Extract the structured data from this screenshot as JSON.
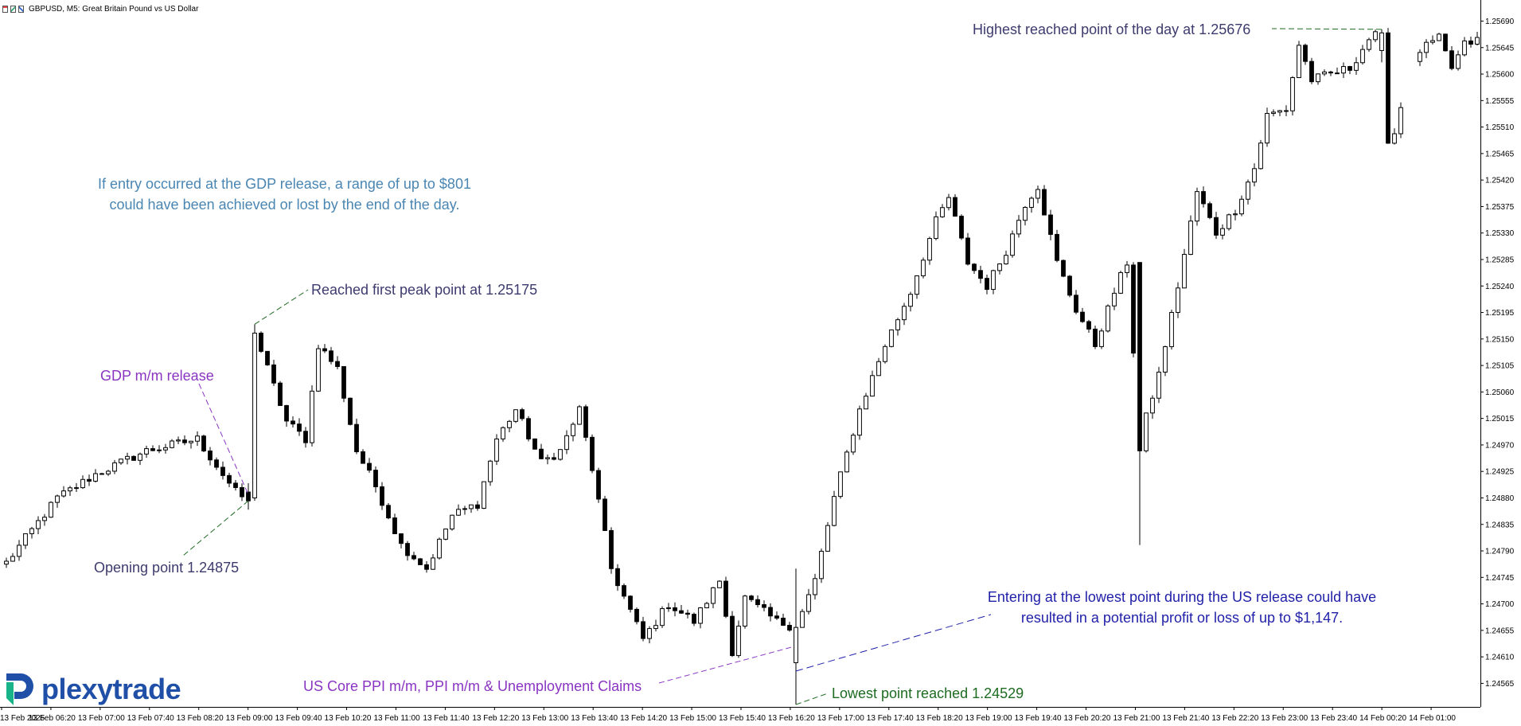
{
  "window": {
    "title": "GBPUSD, M5:  Great Britain Pound vs US Dollar"
  },
  "brand": {
    "name": "plexytrade",
    "colors": {
      "logo_blue": "#1f4fa6",
      "logo_green": "#19b38a"
    }
  },
  "annotations": {
    "highest": "Highest reached point of the day at 1.25676",
    "gdp_range_line1": "If entry occurred at the GDP release, a range of up to $801",
    "gdp_range_line2": "could have been achieved or lost by the end of the day.",
    "first_peak": "Reached first peak point at 1.25175",
    "gdp_release": "GDP m/m release",
    "opening": "Opening point 1.24875",
    "us_entry_line1": "Entering at the lowest point during the US release could have",
    "us_entry_line2": "resulted in a potential profit or loss of up to $1,147.",
    "us_release": "US Core PPI m/m, PPI m/m & Unemployment Claims",
    "lowest": "Lowest point reached 1.24529"
  },
  "colors": {
    "slate": "#3d3b6e",
    "steel_blue": "#4a86b2",
    "purple": "#8a35c2",
    "navy": "#1f1fa8",
    "green": "#1e6b22",
    "candle": "#000000"
  },
  "chart_data": {
    "type": "candlestick",
    "symbol": "GBPUSD",
    "timeframe": "M5",
    "ylim": [
      1.24525,
      1.25715
    ],
    "y_ticks": [
      "1.25690",
      "1.25645",
      "1.25600",
      "1.25555",
      "1.25510",
      "1.25465",
      "1.25420",
      "1.25375",
      "1.25330",
      "1.25285",
      "1.25240",
      "1.25195",
      "1.25150",
      "1.25105",
      "1.25060",
      "1.25015",
      "1.24970",
      "1.24925",
      "1.24880",
      "1.24835",
      "1.24790",
      "1.24745",
      "1.24700",
      "1.24655",
      "1.24610",
      "1.24565"
    ],
    "x_ticks": [
      "13 Feb 2025",
      "13 Feb 06:20",
      "13 Feb 07:00",
      "13 Feb 07:40",
      "13 Feb 08:20",
      "13 Feb 09:00",
      "13 Feb 09:40",
      "13 Feb 10:20",
      "13 Feb 11:00",
      "13 Feb 11:40",
      "13 Feb 12:20",
      "13 Feb 13:00",
      "13 Feb 13:40",
      "13 Feb 14:20",
      "13 Feb 15:00",
      "13 Feb 15:40",
      "13 Feb 16:20",
      "13 Feb 17:00",
      "13 Feb 17:40",
      "13 Feb 18:20",
      "13 Feb 19:00",
      "13 Feb 19:40",
      "13 Feb 20:20",
      "13 Feb 21:00",
      "13 Feb 21:40",
      "13 Feb 22:20",
      "13 Feb 23:00",
      "13 Feb 23:40",
      "14 Feb 00:20",
      "14 Feb 01:00"
    ],
    "key_levels": {
      "opening": 1.24875,
      "first_peak": 1.25175,
      "highest": 1.25676,
      "lowest": 1.24529
    },
    "keypoints": [
      {
        "t": 0,
        "c": 1.2477
      },
      {
        "t": 8,
        "c": 1.2488
      },
      {
        "t": 14,
        "c": 1.2492
      },
      {
        "t": 22,
        "c": 1.2496
      },
      {
        "t": 30,
        "c": 1.2498
      },
      {
        "t": 36,
        "c": 1.2489
      },
      {
        "t": 38,
        "c": 1.24875
      },
      {
        "t": 39,
        "c": 1.2516
      },
      {
        "t": 41,
        "c": 1.251
      },
      {
        "t": 44,
        "c": 1.2501
      },
      {
        "t": 47,
        "c": 1.2498
      },
      {
        "t": 49,
        "c": 1.2514
      },
      {
        "t": 52,
        "c": 1.251
      },
      {
        "t": 55,
        "c": 1.2496
      },
      {
        "t": 58,
        "c": 1.249
      },
      {
        "t": 62,
        "c": 1.248
      },
      {
        "t": 66,
        "c": 1.2476
      },
      {
        "t": 70,
        "c": 1.2485
      },
      {
        "t": 74,
        "c": 1.2487
      },
      {
        "t": 77,
        "c": 1.2498
      },
      {
        "t": 80,
        "c": 1.2503
      },
      {
        "t": 84,
        "c": 1.2494
      },
      {
        "t": 87,
        "c": 1.2496
      },
      {
        "t": 90,
        "c": 1.2503
      },
      {
        "t": 92,
        "c": 1.2493
      },
      {
        "t": 95,
        "c": 1.2476
      },
      {
        "t": 100,
        "c": 1.2464
      },
      {
        "t": 104,
        "c": 1.247
      },
      {
        "t": 108,
        "c": 1.2467
      },
      {
        "t": 112,
        "c": 1.2474
      },
      {
        "t": 114,
        "c": 1.2462
      },
      {
        "t": 116,
        "c": 1.2471
      },
      {
        "t": 121,
        "c": 1.2467
      },
      {
        "t": 124,
        "c": 1.2466
      },
      {
        "t": 127,
        "c": 1.2474
      },
      {
        "t": 130,
        "c": 1.2488
      },
      {
        "t": 134,
        "c": 1.2503
      },
      {
        "t": 138,
        "c": 1.2514
      },
      {
        "t": 142,
        "c": 1.2523
      },
      {
        "t": 146,
        "c": 1.2535
      },
      {
        "t": 148,
        "c": 1.2539
      },
      {
        "t": 151,
        "c": 1.2528
      },
      {
        "t": 154,
        "c": 1.2524
      },
      {
        "t": 157,
        "c": 1.253
      },
      {
        "t": 160,
        "c": 1.2538
      },
      {
        "t": 162,
        "c": 1.2541
      },
      {
        "t": 165,
        "c": 1.2528
      },
      {
        "t": 168,
        "c": 1.252
      },
      {
        "t": 171,
        "c": 1.2514
      },
      {
        "t": 174,
        "c": 1.2523
      },
      {
        "t": 176,
        "c": 1.2528
      },
      {
        "t": 178,
        "c": 1.2498
      },
      {
        "t": 181,
        "c": 1.2509
      },
      {
        "t": 184,
        "c": 1.2524
      },
      {
        "t": 187,
        "c": 1.254
      },
      {
        "t": 190,
        "c": 1.2533
      },
      {
        "t": 193,
        "c": 1.2537
      },
      {
        "t": 196,
        "c": 1.2544
      },
      {
        "t": 198,
        "c": 1.2553
      },
      {
        "t": 201,
        "c": 1.2554
      },
      {
        "t": 203,
        "c": 1.2565
      },
      {
        "t": 205,
        "c": 1.2559
      },
      {
        "t": 208,
        "c": 1.256
      },
      {
        "t": 211,
        "c": 1.2561
      },
      {
        "t": 214,
        "c": 1.2566
      },
      {
        "t": 216,
        "c": 1.2567
      },
      {
        "t": 217,
        "c": 1.2549
      },
      {
        "t": 218,
        "c": 1.255
      },
      {
        "t": 220,
        "c": 1.2559
      },
      {
        "t": 222,
        "c": 1.2564
      },
      {
        "t": 225,
        "c": 1.2566
      },
      {
        "t": 227,
        "c": 1.2561
      },
      {
        "t": 229,
        "c": 1.2565
      }
    ]
  }
}
